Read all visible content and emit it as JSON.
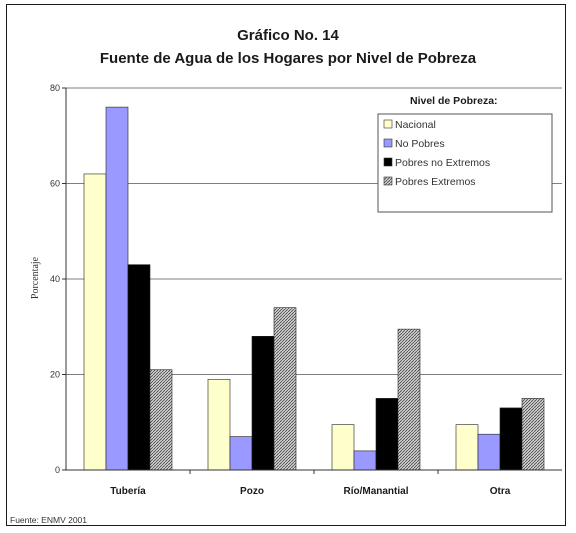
{
  "colors": {
    "nacional": "#ffffcc",
    "no_pobres": "#9999ff",
    "pobres_no_extremos": "#000000",
    "pobres_extremos": "#cccccc",
    "gridline": "#555555"
  },
  "chart_data": {
    "type": "bar",
    "title": "Gráfico No. 14",
    "subtitle": "Fuente de Agua de los Hogares por Nivel de Pobreza",
    "ylabel": "Porcentaje",
    "xlabel": "",
    "categories": [
      "Tubería",
      "Pozo",
      "Río/Manantial",
      "Otra"
    ],
    "ylim": [
      0,
      80
    ],
    "yticks": [
      "0",
      "20",
      "40",
      "60",
      "80"
    ],
    "grid": true,
    "legend_title": "Nivel de Pobreza:",
    "legend_position": "top-right",
    "series": [
      {
        "name": "Nacional",
        "values": [
          62,
          19,
          9.5,
          9.5
        ]
      },
      {
        "name": "No Pobres",
        "values": [
          76,
          7,
          4,
          7.5
        ]
      },
      {
        "name": "Pobres no Extremos",
        "values": [
          43,
          28,
          15,
          13
        ]
      },
      {
        "name": "Pobres Extremos",
        "values": [
          21,
          34,
          29.5,
          15
        ]
      }
    ]
  },
  "source_note": "Fuente: ENMV 2001"
}
